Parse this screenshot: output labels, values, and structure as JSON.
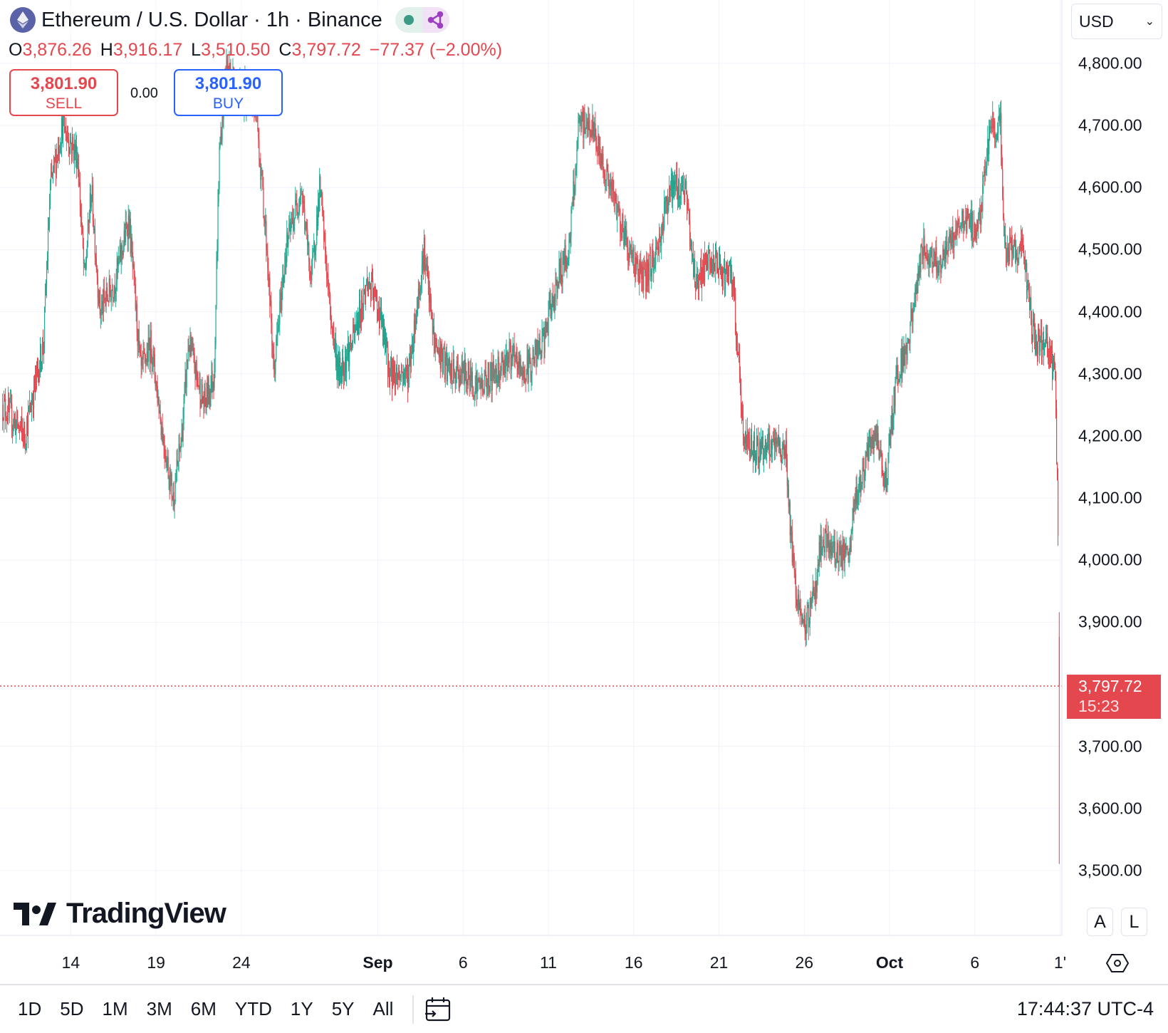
{
  "header": {
    "title": "Ethereum / U.S. Dollar · 1h · Binance",
    "status_dot_color": "#3c9a85",
    "share_icon_color": "#9c3fc2"
  },
  "ohlc": {
    "o_label": "O",
    "o": "3,876.26",
    "h_label": "H",
    "h": "3,916.17",
    "l_label": "L",
    "l": "3,510.50",
    "c_label": "C",
    "c": "3,797.72",
    "change": "−77.37 (−2.00%)"
  },
  "trade": {
    "sell_price": "3,801.90",
    "sell_label": "SELL",
    "spread": "0.00",
    "buy_price": "3,801.90",
    "buy_label": "BUY"
  },
  "currency": "USD",
  "last_price": {
    "price": "3,797.72",
    "countdown": "15:23",
    "value": 3797.72
  },
  "price_axis": [
    "4,800.00",
    "4,700.00",
    "4,600.00",
    "4,500.00",
    "4,400.00",
    "4,300.00",
    "4,200.00",
    "4,100.00",
    "4,000.00",
    "3,900.00",
    "3,700.00",
    "3,600.00",
    "3,500.00"
  ],
  "time_axis": [
    {
      "label": "14",
      "day": 4
    },
    {
      "label": "19",
      "day": 9
    },
    {
      "label": "24",
      "day": 14
    },
    {
      "label": "Sep",
      "day": 22,
      "bold": true
    },
    {
      "label": "6",
      "day": 27
    },
    {
      "label": "11",
      "day": 32
    },
    {
      "label": "16",
      "day": 37
    },
    {
      "label": "21",
      "day": 42
    },
    {
      "label": "26",
      "day": 47
    },
    {
      "label": "Oct",
      "day": 52,
      "bold": true
    },
    {
      "label": "6",
      "day": 57
    },
    {
      "label": "1'",
      "day": 62
    }
  ],
  "scale_buttons": {
    "auto": "A",
    "log": "L"
  },
  "logo": "TradingView",
  "ranges": [
    "1D",
    "5D",
    "1M",
    "3M",
    "6M",
    "YTD",
    "1Y",
    "5Y",
    "All"
  ],
  "clock": "17:44:37 UTC-4",
  "chart_data": {
    "type": "candlestick",
    "interval": "1h",
    "x_unit": "days since Aug 10",
    "ylim": [
      3500,
      4800
    ],
    "up_color": "#22ab94",
    "down_color": "#e5474f",
    "path": [
      [
        0,
        4250
      ],
      [
        1.3,
        4200
      ],
      [
        2.4,
        4350
      ],
      [
        2.8,
        4600
      ],
      [
        3.5,
        4700
      ],
      [
        4.4,
        4650
      ],
      [
        4.8,
        4450
      ],
      [
        5.2,
        4600
      ],
      [
        5.7,
        4400
      ],
      [
        6.6,
        4450
      ],
      [
        7.4,
        4550
      ],
      [
        8.1,
        4300
      ],
      [
        8.7,
        4350
      ],
      [
        9.4,
        4200
      ],
      [
        10.0,
        4100
      ],
      [
        10.5,
        4200
      ],
      [
        10.9,
        4350
      ],
      [
        11.8,
        4250
      ],
      [
        12.4,
        4300
      ],
      [
        12.7,
        4650
      ],
      [
        13.1,
        4800
      ],
      [
        14.0,
        4750
      ],
      [
        14.8,
        4750
      ],
      [
        15.5,
        4500
      ],
      [
        15.9,
        4300
      ],
      [
        16.6,
        4500
      ],
      [
        17.5,
        4600
      ],
      [
        18.1,
        4450
      ],
      [
        18.6,
        4600
      ],
      [
        19.2,
        4400
      ],
      [
        19.7,
        4300
      ],
      [
        20.5,
        4350
      ],
      [
        21.4,
        4450
      ],
      [
        22.1,
        4400
      ],
      [
        22.7,
        4300
      ],
      [
        23.8,
        4300
      ],
      [
        24.7,
        4500
      ],
      [
        25.3,
        4350
      ],
      [
        26.2,
        4300
      ],
      [
        27.1,
        4300
      ],
      [
        27.9,
        4280
      ],
      [
        28.8,
        4300
      ],
      [
        29.7,
        4330
      ],
      [
        30.6,
        4300
      ],
      [
        31.7,
        4350
      ],
      [
        32.5,
        4450
      ],
      [
        33.2,
        4500
      ],
      [
        33.8,
        4700
      ],
      [
        34.5,
        4700
      ],
      [
        35.4,
        4620
      ],
      [
        36.2,
        4550
      ],
      [
        36.7,
        4500
      ],
      [
        37.6,
        4450
      ],
      [
        38.4,
        4500
      ],
      [
        39.1,
        4600
      ],
      [
        40.0,
        4600
      ],
      [
        40.6,
        4450
      ],
      [
        41.5,
        4480
      ],
      [
        42.8,
        4450
      ],
      [
        43.2,
        4300
      ],
      [
        43.4,
        4200
      ],
      [
        44.1,
        4180
      ],
      [
        45.9,
        4180
      ],
      [
        46.3,
        4000
      ],
      [
        46.9,
        3880
      ],
      [
        47.6,
        3950
      ],
      [
        48.0,
        4030
      ],
      [
        49.6,
        4000
      ],
      [
        50.0,
        4100
      ],
      [
        51.1,
        4200
      ],
      [
        51.8,
        4130
      ],
      [
        52.4,
        4300
      ],
      [
        53.1,
        4350
      ],
      [
        53.9,
        4500
      ],
      [
        55.0,
        4480
      ],
      [
        56.3,
        4550
      ],
      [
        57.2,
        4530
      ],
      [
        57.9,
        4700
      ],
      [
        58.5,
        4700
      ],
      [
        58.7,
        4500
      ],
      [
        59.8,
        4500
      ],
      [
        60.5,
        4350
      ],
      [
        61.1,
        4350
      ],
      [
        61.7,
        4300
      ],
      [
        61.85,
        4100
      ],
      [
        61.95,
        3876.26
      ]
    ],
    "last_candle": {
      "o": 3876.26,
      "h": 3916.17,
      "l": 3510.5,
      "c": 3797.72
    }
  }
}
